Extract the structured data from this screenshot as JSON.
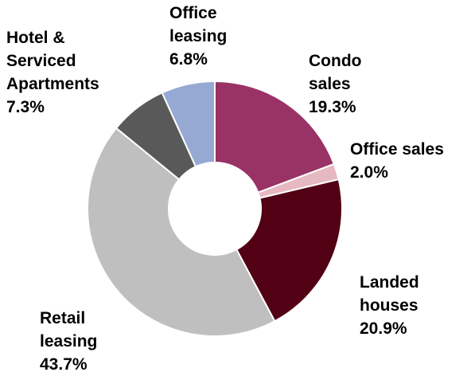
{
  "chart_data": {
    "type": "donut",
    "categories": [
      "Condo sales",
      "Office sales",
      "Landed houses",
      "Retail leasing",
      "Hotel & Serviced Apartments",
      "Office leasing"
    ],
    "values": [
      19.3,
      2.0,
      20.9,
      43.7,
      7.3,
      6.8
    ],
    "value_labels": [
      "19.3%",
      "2.0%",
      "20.9%",
      "43.7%",
      "7.3%",
      "6.8%"
    ],
    "colors": [
      "#993366",
      "#e6b8c0",
      "#520014",
      "#bfbfbf",
      "#595959",
      "#95a9d3"
    ]
  }
}
